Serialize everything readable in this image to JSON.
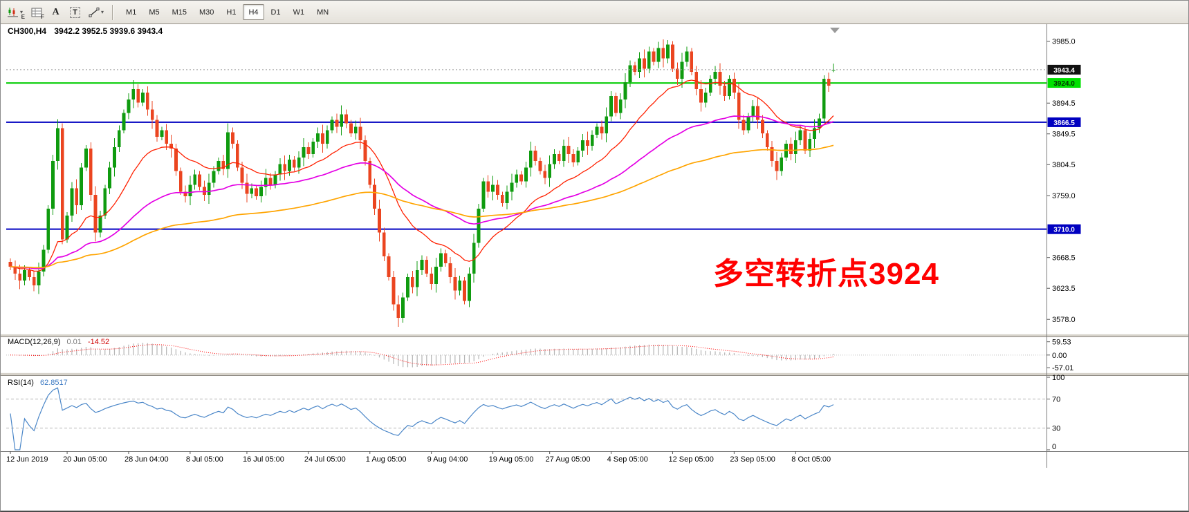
{
  "toolbar": {
    "buttons": [
      {
        "name": "charts",
        "sub": "E"
      },
      {
        "name": "data-window",
        "sub": "F"
      },
      {
        "name": "text-label",
        "label": "A"
      },
      {
        "name": "text-box",
        "label": "T"
      },
      {
        "name": "draw-tools",
        "label": ""
      }
    ],
    "timeframes": [
      "M1",
      "M5",
      "M15",
      "M30",
      "H1",
      "H4",
      "D1",
      "W1",
      "MN"
    ],
    "active_timeframe": "H4"
  },
  "chart": {
    "title": "CH300,H4",
    "ohlc_text": "3942.2 3952.5 3939.6 3943.4",
    "annotation": {
      "text": "多空转折点3924",
      "color": "#ff0000"
    }
  },
  "chart_data": {
    "type": "candlestick",
    "symbol": "CH300",
    "timeframe": "H4",
    "current": {
      "open": 3942.2,
      "high": 3952.5,
      "low": 3939.6,
      "close": 3943.4
    },
    "y_range": [
      3559,
      4008
    ],
    "y_ticks": [
      "3985.0",
      "3894.5",
      "3849.5",
      "3804.5",
      "3759.0",
      "3668.5",
      "3623.5",
      "3578.0"
    ],
    "price_line": {
      "value": 3943.4,
      "label": "3943.4",
      "bg": "#111111",
      "fg": "#ffffff"
    },
    "h_lines": [
      {
        "value": 3924.0,
        "label": "3924.0",
        "color": "#00cc00",
        "bg": "#00e000",
        "fg": "#003300"
      },
      {
        "value": 3866.5,
        "label": "3866.5",
        "color": "#0000c0",
        "bg": "#0000c0",
        "fg": "#ffffff"
      },
      {
        "value": 3710.0,
        "label": "3710.0",
        "color": "#0000c0",
        "bg": "#0000c0",
        "fg": "#ffffff"
      }
    ],
    "up_color": "#0f9b0f",
    "down_color": "#eb4520",
    "moving_averages": [
      {
        "period": 20,
        "color": "#ff2000"
      },
      {
        "period": 55,
        "color": "#e400e4"
      },
      {
        "period": 120,
        "color": "#ffa400"
      }
    ],
    "time_labels": [
      {
        "i": 0,
        "t": "12 Jun 2019"
      },
      {
        "i": 12,
        "t": "20 Jun 05:00"
      },
      {
        "i": 25,
        "t": "28 Jun 04:00"
      },
      {
        "i": 38,
        "t": "8 Jul 05:00"
      },
      {
        "i": 50,
        "t": "16 Jul 05:00"
      },
      {
        "i": 63,
        "t": "24 Jul 05:00"
      },
      {
        "i": 76,
        "t": "1 Aug 05:00"
      },
      {
        "i": 89,
        "t": "9 Aug 04:00"
      },
      {
        "i": 102,
        "t": "19 Aug 05:00"
      },
      {
        "i": 114,
        "t": "27 Aug 05:00"
      },
      {
        "i": 127,
        "t": "4 Sep 05:00"
      },
      {
        "i": 140,
        "t": "12 Sep 05:00"
      },
      {
        "i": 153,
        "t": "23 Sep 05:00"
      },
      {
        "i": 166,
        "t": "8 Oct 05:00"
      }
    ],
    "indicators": {
      "macd": {
        "name": "MACD(12,26,9)",
        "value": "0.01",
        "signal_value": "-14.52",
        "fast": 12,
        "slow": 26,
        "signal": 9,
        "ticks": [
          "59.53",
          "0.00",
          "-57.01"
        ],
        "tick_values": [
          59.53,
          0,
          -57.01
        ],
        "range": [
          -72,
          74
        ],
        "hist_color": "#b4b4b4",
        "signal_color": "#ff0000"
      },
      "rsi": {
        "name": "RSI(14)",
        "value": "62.8517",
        "period": 14,
        "ticks": [
          "100",
          "70",
          "30",
          "0"
        ],
        "tick_values": [
          100,
          70,
          30,
          0
        ],
        "levels": [
          70,
          30
        ],
        "range": [
          0,
          100
        ],
        "color": "#4a86c8"
      }
    },
    "candles": [
      [
        3662,
        3667,
        3650,
        3655
      ],
      [
        3655,
        3664,
        3636,
        3645
      ],
      [
        3645,
        3658,
        3622,
        3635
      ],
      [
        3635,
        3657,
        3628,
        3650
      ],
      [
        3650,
        3655,
        3635,
        3640
      ],
      [
        3640,
        3649,
        3619,
        3628
      ],
      [
        3628,
        3661,
        3615,
        3648
      ],
      [
        3648,
        3687,
        3641,
        3680
      ],
      [
        3680,
        3745,
        3675,
        3740
      ],
      [
        3740,
        3819,
        3731,
        3810
      ],
      [
        3810,
        3871,
        3797,
        3858
      ],
      [
        3858,
        3865,
        3688,
        3695
      ],
      [
        3695,
        3735,
        3690,
        3730
      ],
      [
        3730,
        3779,
        3721,
        3770
      ],
      [
        3770,
        3783,
        3732,
        3745
      ],
      [
        3745,
        3807,
        3738,
        3800
      ],
      [
        3800,
        3833,
        3795,
        3828
      ],
      [
        3828,
        3837,
        3751,
        3760
      ],
      [
        3760,
        3773,
        3692,
        3705
      ],
      [
        3705,
        3737,
        3698,
        3730
      ],
      [
        3730,
        3775,
        3725,
        3770
      ],
      [
        3770,
        3809,
        3761,
        3800
      ],
      [
        3800,
        3843,
        3787,
        3830
      ],
      [
        3830,
        3862,
        3823,
        3855
      ],
      [
        3855,
        3885,
        3850,
        3880
      ],
      [
        3880,
        3909,
        3871,
        3900
      ],
      [
        3900,
        3928,
        3887,
        3915
      ],
      [
        3915,
        3922,
        3888,
        3895
      ],
      [
        3895,
        3915,
        3890,
        3910
      ],
      [
        3910,
        3919,
        3876,
        3885
      ],
      [
        3885,
        3898,
        3857,
        3870
      ],
      [
        3870,
        3877,
        3838,
        3845
      ],
      [
        3845,
        3860,
        3840,
        3855
      ],
      [
        3855,
        3864,
        3826,
        3835
      ],
      [
        3835,
        3848,
        3815,
        3828
      ],
      [
        3828,
        3835,
        3788,
        3795
      ],
      [
        3795,
        3800,
        3760,
        3765
      ],
      [
        3765,
        3774,
        3749,
        3758
      ],
      [
        3758,
        3788,
        3745,
        3775
      ],
      [
        3775,
        3797,
        3768,
        3790
      ],
      [
        3790,
        3795,
        3767,
        3772
      ],
      [
        3772,
        3781,
        3751,
        3760
      ],
      [
        3760,
        3791,
        3747,
        3778
      ],
      [
        3778,
        3802,
        3771,
        3795
      ],
      [
        3795,
        3815,
        3790,
        3810
      ],
      [
        3810,
        3819,
        3789,
        3798
      ],
      [
        3798,
        3865,
        3785,
        3852
      ],
      [
        3852,
        3859,
        3828,
        3835
      ],
      [
        3835,
        3840,
        3795,
        3800
      ],
      [
        3800,
        3809,
        3769,
        3778
      ],
      [
        3778,
        3791,
        3749,
        3762
      ],
      [
        3762,
        3777,
        3755,
        3770
      ],
      [
        3770,
        3775,
        3753,
        3758
      ],
      [
        3758,
        3781,
        3749,
        3772
      ],
      [
        3772,
        3798,
        3759,
        3785
      ],
      [
        3785,
        3792,
        3768,
        3775
      ],
      [
        3775,
        3795,
        3770,
        3790
      ],
      [
        3790,
        3814,
        3781,
        3805
      ],
      [
        3805,
        3818,
        3782,
        3795
      ],
      [
        3795,
        3819,
        3788,
        3812
      ],
      [
        3812,
        3817,
        3795,
        3800
      ],
      [
        3800,
        3824,
        3791,
        3815
      ],
      [
        3815,
        3843,
        3802,
        3830
      ],
      [
        3830,
        3837,
        3813,
        3820
      ],
      [
        3820,
        3843,
        3815,
        3838
      ],
      [
        3838,
        3859,
        3829,
        3850
      ],
      [
        3850,
        3863,
        3822,
        3835
      ],
      [
        3835,
        3862,
        3828,
        3855
      ],
      [
        3855,
        3875,
        3850,
        3870
      ],
      [
        3870,
        3879,
        3851,
        3860
      ],
      [
        3860,
        3891,
        3847,
        3878
      ],
      [
        3878,
        3885,
        3858,
        3865
      ],
      [
        3865,
        3870,
        3845,
        3850
      ],
      [
        3850,
        3869,
        3841,
        3860
      ],
      [
        3860,
        3873,
        3827,
        3840
      ],
      [
        3840,
        3847,
        3803,
        3810
      ],
      [
        3810,
        3815,
        3770,
        3775
      ],
      [
        3775,
        3784,
        3731,
        3740
      ],
      [
        3740,
        3753,
        3692,
        3705
      ],
      [
        3705,
        3712,
        3663,
        3670
      ],
      [
        3670,
        3675,
        3635,
        3640
      ],
      [
        3640,
        3649,
        3591,
        3600
      ],
      [
        3600,
        3613,
        3567,
        3580
      ],
      [
        3580,
        3617,
        3573,
        3610
      ],
      [
        3610,
        3645,
        3605,
        3640
      ],
      [
        3640,
        3649,
        3616,
        3625
      ],
      [
        3625,
        3663,
        3612,
        3650
      ],
      [
        3650,
        3672,
        3643,
        3665
      ],
      [
        3665,
        3670,
        3640,
        3645
      ],
      [
        3645,
        3654,
        3621,
        3630
      ],
      [
        3630,
        3668,
        3617,
        3655
      ],
      [
        3655,
        3682,
        3648,
        3675
      ],
      [
        3675,
        3680,
        3655,
        3660
      ],
      [
        3660,
        3669,
        3631,
        3640
      ],
      [
        3640,
        3653,
        3607,
        3620
      ],
      [
        3620,
        3642,
        3613,
        3635
      ],
      [
        3635,
        3640,
        3600,
        3605
      ],
      [
        3605,
        3654,
        3596,
        3645
      ],
      [
        3645,
        3703,
        3632,
        3690
      ],
      [
        3690,
        3747,
        3683,
        3740
      ],
      [
        3740,
        3785,
        3735,
        3780
      ],
      [
        3780,
        3789,
        3756,
        3765
      ],
      [
        3765,
        3788,
        3752,
        3775
      ],
      [
        3775,
        3782,
        3753,
        3760
      ],
      [
        3760,
        3765,
        3743,
        3748
      ],
      [
        3748,
        3774,
        3739,
        3765
      ],
      [
        3765,
        3791,
        3752,
        3778
      ],
      [
        3778,
        3797,
        3771,
        3790
      ],
      [
        3790,
        3795,
        3775,
        3780
      ],
      [
        3780,
        3809,
        3771,
        3800
      ],
      [
        3800,
        3838,
        3787,
        3825
      ],
      [
        3825,
        3832,
        3803,
        3810
      ],
      [
        3810,
        3815,
        3790,
        3795
      ],
      [
        3795,
        3804,
        3776,
        3785
      ],
      [
        3785,
        3818,
        3772,
        3805
      ],
      [
        3805,
        3827,
        3798,
        3820
      ],
      [
        3820,
        3825,
        3805,
        3810
      ],
      [
        3810,
        3841,
        3801,
        3832
      ],
      [
        3832,
        3845,
        3807,
        3820
      ],
      [
        3820,
        3827,
        3801,
        3808
      ],
      [
        3808,
        3830,
        3803,
        3825
      ],
      [
        3825,
        3849,
        3816,
        3840
      ],
      [
        3840,
        3853,
        3819,
        3832
      ],
      [
        3832,
        3855,
        3825,
        3848
      ],
      [
        3848,
        3865,
        3843,
        3860
      ],
      [
        3860,
        3869,
        3841,
        3850
      ],
      [
        3850,
        3888,
        3837,
        3875
      ],
      [
        3875,
        3912,
        3868,
        3905
      ],
      [
        3905,
        3910,
        3875,
        3880
      ],
      [
        3880,
        3909,
        3871,
        3900
      ],
      [
        3900,
        3938,
        3887,
        3925
      ],
      [
        3925,
        3957,
        3918,
        3950
      ],
      [
        3950,
        3955,
        3935,
        3940
      ],
      [
        3940,
        3969,
        3931,
        3960
      ],
      [
        3960,
        3973,
        3932,
        3945
      ],
      [
        3945,
        3977,
        3938,
        3970
      ],
      [
        3970,
        3975,
        3950,
        3955
      ],
      [
        3955,
        3984,
        3946,
        3975
      ],
      [
        3975,
        3988,
        3947,
        3960
      ],
      [
        3960,
        3987,
        3953,
        3980
      ],
      [
        3980,
        3985,
        3940,
        3945
      ],
      [
        3945,
        3954,
        3921,
        3930
      ],
      [
        3930,
        3968,
        3917,
        3955
      ],
      [
        3955,
        3977,
        3948,
        3970
      ],
      [
        3970,
        3975,
        3935,
        3940
      ],
      [
        3940,
        3949,
        3906,
        3915
      ],
      [
        3915,
        3928,
        3882,
        3895
      ],
      [
        3895,
        3917,
        3888,
        3910
      ],
      [
        3910,
        3935,
        3905,
        3930
      ],
      [
        3930,
        3949,
        3921,
        3940
      ],
      [
        3940,
        3953,
        3907,
        3920
      ],
      [
        3920,
        3927,
        3898,
        3905
      ],
      [
        3905,
        3935,
        3900,
        3930
      ],
      [
        3930,
        3939,
        3901,
        3910
      ],
      [
        3910,
        3923,
        3857,
        3870
      ],
      [
        3870,
        3877,
        3848,
        3855
      ],
      [
        3855,
        3880,
        3850,
        3875
      ],
      [
        3875,
        3899,
        3866,
        3890
      ],
      [
        3890,
        3903,
        3857,
        3870
      ],
      [
        3870,
        3877,
        3843,
        3850
      ],
      [
        3850,
        3855,
        3825,
        3830
      ],
      [
        3830,
        3839,
        3801,
        3810
      ],
      [
        3810,
        3823,
        3782,
        3795
      ],
      [
        3795,
        3822,
        3788,
        3815
      ],
      [
        3815,
        3840,
        3810,
        3835
      ],
      [
        3835,
        3844,
        3811,
        3820
      ],
      [
        3820,
        3853,
        3807,
        3840
      ],
      [
        3840,
        3862,
        3833,
        3855
      ],
      [
        3855,
        3860,
        3820,
        3825
      ],
      [
        3825,
        3851,
        3816,
        3842
      ],
      [
        3842,
        3871,
        3829,
        3858
      ],
      [
        3858,
        3879,
        3851,
        3872
      ],
      [
        3872,
        3935,
        3867,
        3930
      ],
      [
        3930,
        3939,
        3911,
        3920
      ],
      [
        3942.2,
        3952.5,
        3939.6,
        3943.4
      ]
    ]
  }
}
